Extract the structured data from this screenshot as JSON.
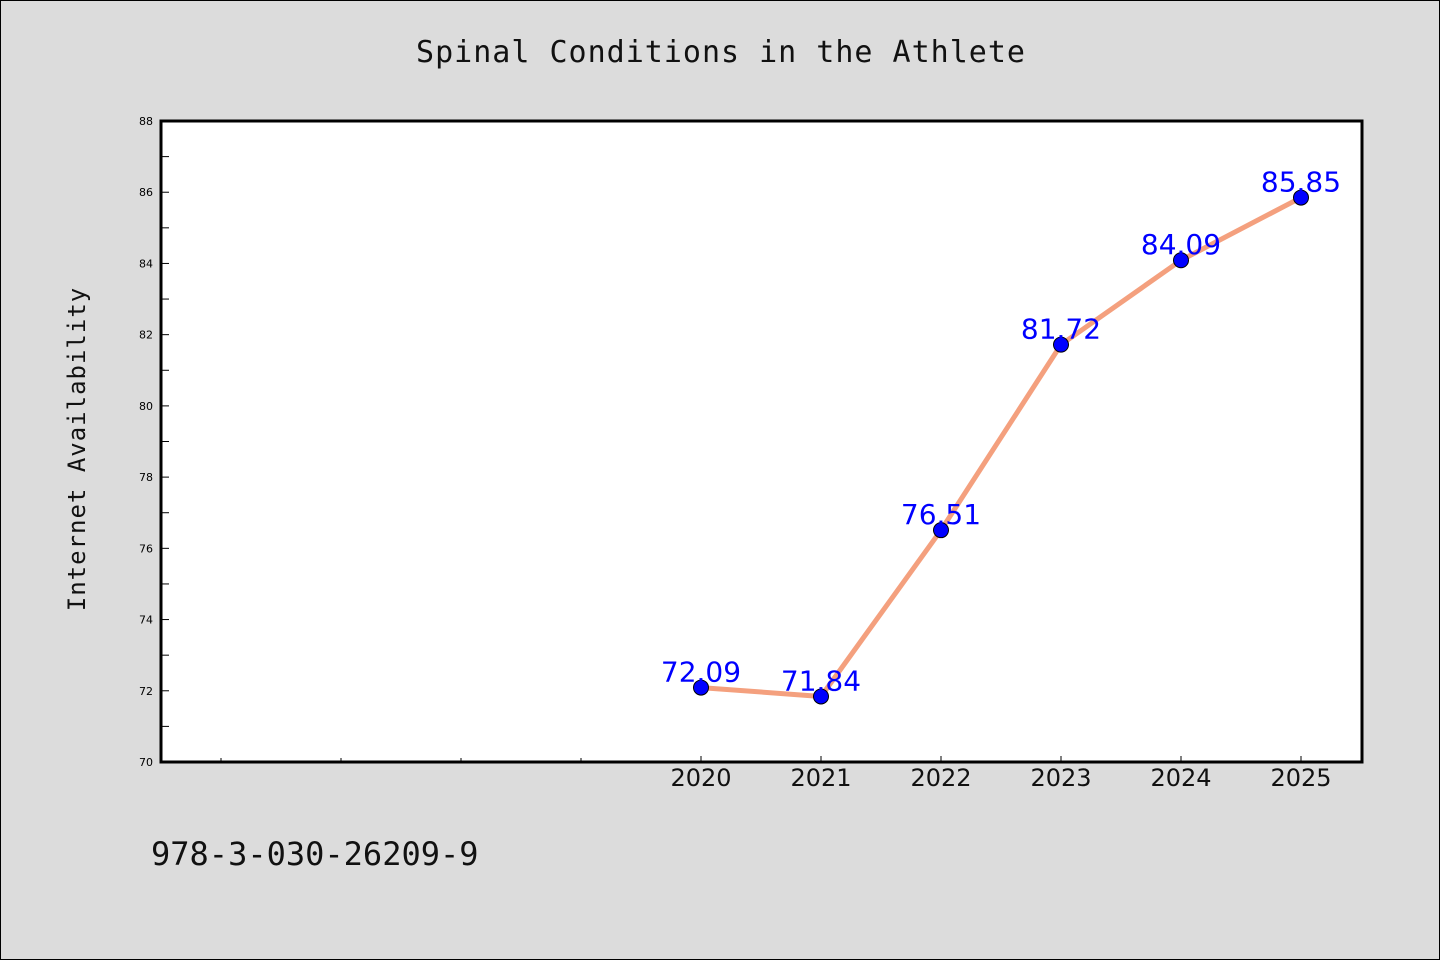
{
  "chart_data": {
    "type": "line",
    "title": "Spinal Conditions in the Athlete",
    "xlabel": "",
    "ylabel": "Internet Availability",
    "x": [
      "2020",
      "2021",
      "2022",
      "2023",
      "2024",
      "2025"
    ],
    "series": [
      {
        "values": [
          72.09,
          71.84,
          76.51,
          81.72,
          84.09,
          85.85
        ],
        "labels": [
          "72.09",
          "71.84",
          "76.51",
          "81.72",
          "84.09",
          "85.85"
        ],
        "line_color": "#f4a07e",
        "marker_color": "#0000ff"
      }
    ],
    "ylim": [
      70,
      88
    ],
    "yticks": [
      "70",
      "72",
      "74",
      "76",
      "78",
      "80",
      "82",
      "84",
      "86",
      "88"
    ],
    "grid": false,
    "legend": "none"
  },
  "footer": {
    "isbn": "978-3-030-26209-9"
  },
  "colors": {
    "background": "#dcdcdc",
    "plot_area": "#ffffff"
  }
}
